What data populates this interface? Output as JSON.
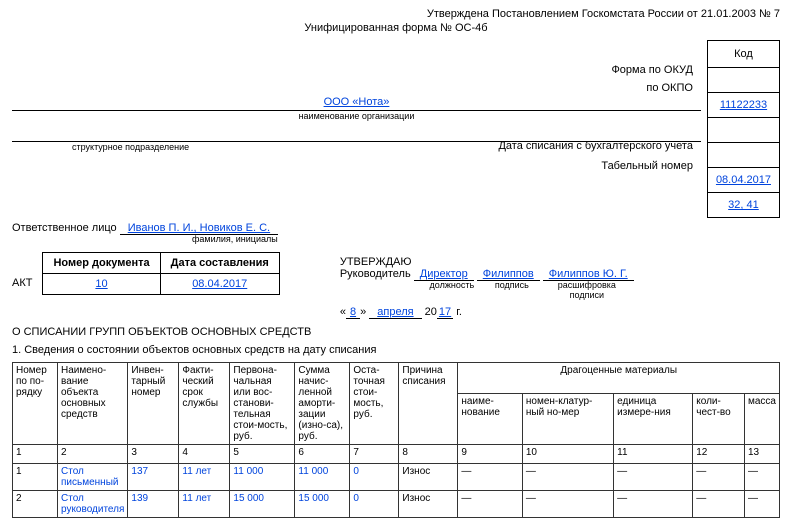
{
  "header": {
    "approval_notice": "Утверждена Постановлением Госкомстата России от 21.01.2003 № 7",
    "form_title": "Унифицированная форма № ОС-4б",
    "kod_label": "Код",
    "okud_label": "Форма по ОКУД",
    "okpo_label": "по ОКПО",
    "okpo_value": "11122233",
    "org_name": "ООО «Нота»",
    "org_caption": "наименование организации",
    "struct_caption": "структурное подразделение",
    "writeoff_label": "Дата списания с бухгалтерского учета",
    "writeoff_date": "08.04.2017",
    "tabnum_label": "Табельный номер",
    "tabnum_value": "32, 41",
    "resp_label": "Ответственное лицо",
    "resp_names": "Иванов П. И., Новиков Е. С.",
    "resp_caption": "фамилия, инициалы"
  },
  "doc": {
    "num_label": "Номер документа",
    "date_label": "Дата составления",
    "num": "10",
    "date": "08.04.2017",
    "akt": "АКТ"
  },
  "approve": {
    "utv": "УТВЕРЖДАЮ",
    "ruk": "Руководитель",
    "position": "Директор",
    "sign": "Филиппов",
    "trans": "Филиппов Ю. Г.",
    "c_pos": "должность",
    "c_sign": "подпись",
    "c_trans": "расшифровка подписи",
    "day": "8",
    "month": "апреля",
    "year_prefix": "20",
    "year": "17",
    "year_suffix": "г."
  },
  "titles": {
    "main": "О СПИСАНИИ ГРУПП ОБЪЕКТОВ ОСНОВНЫХ СРЕДСТВ",
    "section1": "1. Сведения о состоянии объектов основных средств на дату списания"
  },
  "table": {
    "h1": "Номер по по-рядку",
    "h2": "Наимено-вание объекта основных средств",
    "h3": "Инвен-тарный номер",
    "h4": "Факти-ческий срок службы",
    "h5": "Первона-чальная или вос-станови-тельная стои-мость, руб.",
    "h6": "Сумма начис-ленной аморти-зации (изно-са), руб.",
    "h7": "Оста-точная стои-мость, руб.",
    "h8": "Причина списания",
    "h_group": "Драгоценные материалы",
    "h9": "наиме-нование",
    "h10": "номен-клатур-ный но-мер",
    "h11": "единица измере-ния",
    "h12": "коли-чест-во",
    "h13": "масса",
    "nums": [
      "1",
      "2",
      "3",
      "4",
      "5",
      "6",
      "7",
      "8",
      "9",
      "10",
      "11",
      "12",
      "13"
    ],
    "rows": [
      {
        "n": "1",
        "name": "Стол письменный",
        "inv": "137",
        "srok": "11 лет",
        "cost": "11 000",
        "amort": "11 000",
        "rest": "0",
        "reason": "Износ",
        "d1": "—",
        "d2": "—",
        "d3": "—",
        "d4": "—",
        "d5": "—"
      },
      {
        "n": "2",
        "name": "Стол руководителя",
        "inv": "139",
        "srok": "11 лет",
        "cost": "15 000",
        "amort": "15 000",
        "rest": "0",
        "reason": "Износ",
        "d1": "—",
        "d2": "—",
        "d3": "—",
        "d4": "—",
        "d5": "—"
      }
    ]
  }
}
